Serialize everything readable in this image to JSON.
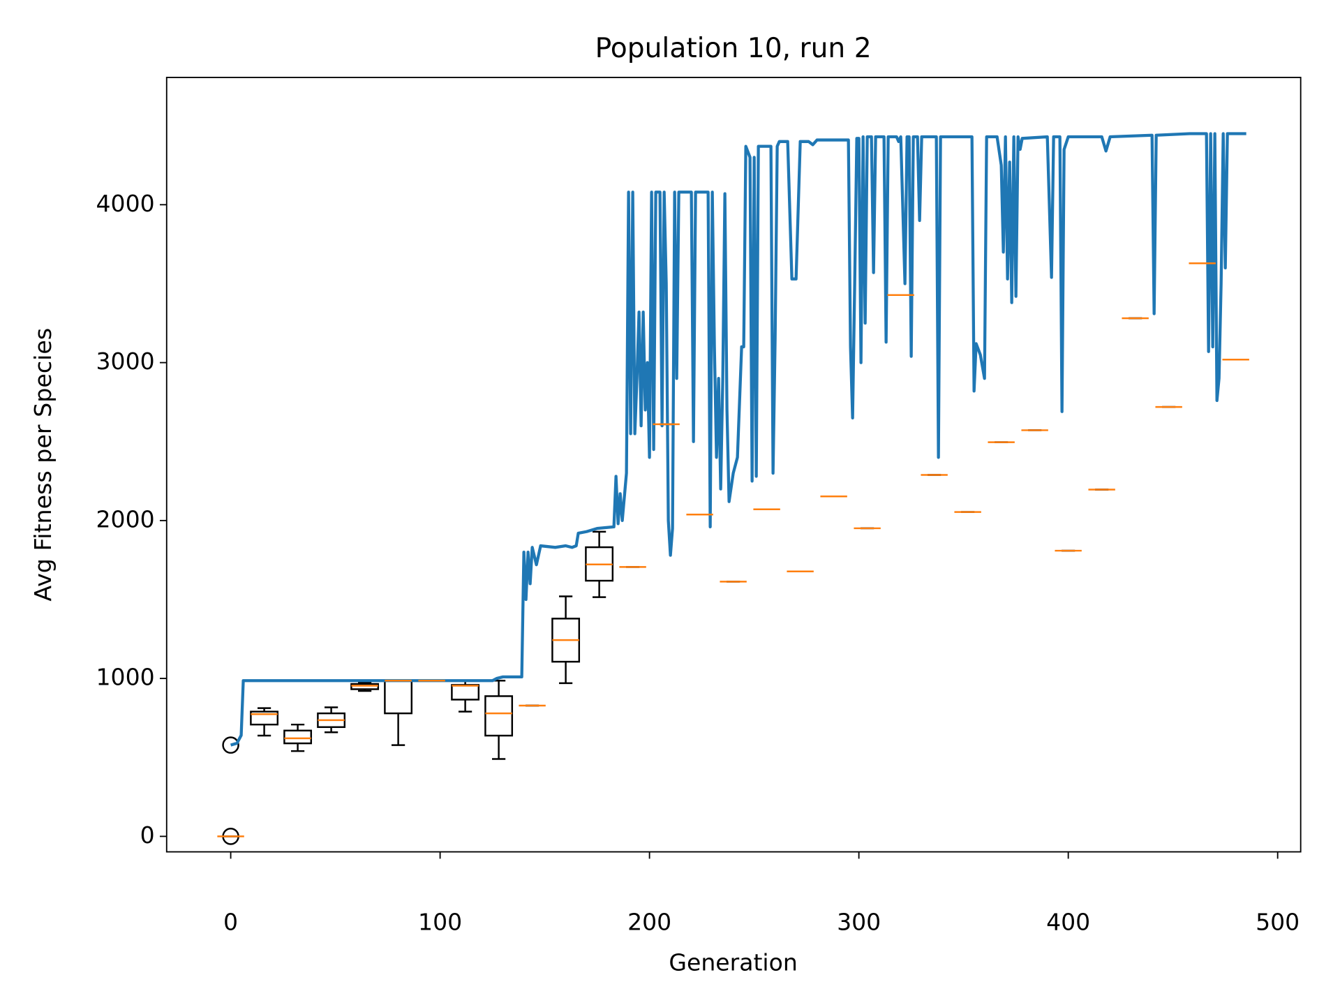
{
  "chart_data": {
    "type": "line_box",
    "title": "Population 10, run 2",
    "xlabel": "Generation",
    "ylabel": "Avg Fitness per Species",
    "xlim": [
      -30.6,
      511
    ],
    "ylim": [
      -98,
      4806
    ],
    "xticks": [
      0,
      100,
      200,
      300,
      400,
      500
    ],
    "yticks": [
      0,
      1000,
      2000,
      3000,
      4000
    ],
    "series": [
      {
        "color": "#1f77b4",
        "x": [
          0,
          3,
          5,
          6,
          20,
          60,
          100,
          125,
          127,
          130,
          139,
          140,
          141,
          142,
          143,
          144,
          146,
          148,
          155,
          160,
          163,
          165,
          166,
          170,
          175,
          183,
          184,
          185,
          186,
          187,
          188,
          189,
          190,
          191,
          192,
          193,
          194,
          195,
          196,
          197,
          198,
          199,
          200,
          201,
          202,
          203,
          205,
          206,
          207,
          208,
          209,
          210,
          211,
          212,
          213,
          214,
          220,
          221,
          222,
          228,
          229,
          230,
          231,
          232,
          233,
          234,
          235,
          236,
          237,
          238,
          240,
          242,
          244,
          245,
          246,
          248,
          249,
          250,
          251,
          252,
          256,
          258,
          259,
          260,
          261,
          262,
          266,
          268,
          270,
          272,
          276,
          278,
          280,
          295,
          296,
          297,
          298,
          299,
          300,
          301,
          302,
          303,
          304,
          306,
          307,
          308,
          312,
          313,
          314,
          318,
          319,
          320,
          322,
          323,
          324,
          325,
          326,
          328,
          329,
          330,
          337,
          338,
          339,
          354,
          355,
          356,
          358,
          360,
          361,
          366,
          368,
          369,
          370,
          371,
          372,
          373,
          374,
          375,
          376,
          377,
          378,
          390,
          392,
          393,
          396,
          397,
          398,
          400,
          416,
          418,
          420,
          440,
          441,
          442,
          458,
          466,
          467,
          468,
          469,
          470,
          471,
          472,
          473,
          474,
          475,
          476,
          485
        ],
        "values": [
          578,
          590,
          640,
          986,
          986,
          986,
          986,
          986,
          1000,
          1010,
          1010,
          1800,
          1500,
          1800,
          1600,
          1830,
          1720,
          1840,
          1830,
          1840,
          1830,
          1840,
          1920,
          1930,
          1950,
          1960,
          2280,
          1980,
          2170,
          2000,
          2150,
          2300,
          4080,
          2550,
          4080,
          2550,
          2900,
          3320,
          2600,
          3320,
          2700,
          3000,
          2400,
          4080,
          2450,
          4080,
          4080,
          2600,
          4080,
          3500,
          2000,
          1780,
          1950,
          4080,
          2900,
          4080,
          4080,
          2500,
          4080,
          4080,
          1960,
          4080,
          3100,
          2400,
          2900,
          2200,
          2900,
          4070,
          2700,
          2120,
          2300,
          2400,
          3100,
          3100,
          4370,
          4300,
          2250,
          4300,
          2280,
          4370,
          4370,
          4370,
          2300,
          3150,
          4370,
          4400,
          4400,
          3530,
          3530,
          4400,
          4400,
          4380,
          4410,
          4410,
          3100,
          2650,
          3500,
          4420,
          4420,
          3000,
          4430,
          3250,
          4430,
          4430,
          3570,
          4430,
          4430,
          3130,
          4430,
          4430,
          4400,
          4430,
          3500,
          4430,
          4430,
          3040,
          4430,
          4430,
          3900,
          4430,
          4430,
          2400,
          4430,
          4430,
          2820,
          3120,
          3050,
          2900,
          4430,
          4430,
          4250,
          3700,
          4430,
          3530,
          4270,
          3380,
          4430,
          3420,
          4430,
          4350,
          4420,
          4430,
          3540,
          4430,
          4430,
          2690,
          4350,
          4430,
          4430,
          4340,
          4430,
          4440,
          3310,
          4440,
          4450,
          4450,
          3070,
          4450,
          3100,
          4450,
          2760,
          2900,
          3500,
          4450,
          3600,
          4450,
          4450
        ]
      }
    ],
    "boxes": {
      "edge_color": "#000000",
      "median_color": "#ff7f0e",
      "positions": [
        0,
        16,
        32,
        48,
        64,
        80,
        96,
        112,
        128,
        144,
        160,
        176,
        192,
        208,
        224,
        240,
        256,
        272,
        288,
        304,
        320,
        336,
        352,
        368,
        384,
        400,
        416,
        432,
        448,
        464,
        480
      ],
      "med": [
        0,
        774,
        621,
        736,
        954,
        986,
        986,
        954,
        779,
        828,
        1243,
        1722,
        1706,
        2610,
        2038,
        1613,
        2071,
        1678,
        2153,
        1951,
        3428,
        2289,
        2054,
        2496,
        2572,
        1809,
        2196,
        3281,
        2719,
        3629,
        3019
      ],
      "q1": [
        0,
        708,
        589,
        692,
        932,
        779,
        986,
        866,
        638,
        828,
        1106,
        1619,
        1706,
        2610,
        2038,
        1613,
        2071,
        1678,
        2153,
        1951,
        3428,
        2289,
        2054,
        2496,
        2572,
        1809,
        2196,
        3281,
        2719,
        3629,
        3019
      ],
      "q3": [
        0,
        790,
        670,
        779,
        965,
        986,
        986,
        959,
        888,
        828,
        1379,
        1831,
        1706,
        2610,
        2038,
        1613,
        2071,
        1678,
        2153,
        1951,
        3428,
        2289,
        2054,
        2496,
        2572,
        1809,
        2196,
        3281,
        2719,
        3629,
        3019
      ],
      "whislo": [
        0,
        638,
        540,
        659,
        921,
        578,
        986,
        790,
        490,
        828,
        970,
        1515,
        1706,
        2610,
        2038,
        1613,
        2071,
        1678,
        2153,
        1951,
        3428,
        2289,
        2054,
        2496,
        2572,
        1809,
        2196,
        3281,
        2719,
        3629,
        3019
      ],
      "whishi": [
        0,
        812,
        708,
        817,
        975,
        986,
        986,
        986,
        986,
        828,
        1520,
        1929,
        1706,
        2610,
        2038,
        1613,
        2071,
        1678,
        2153,
        1951,
        3428,
        2289,
        2054,
        2496,
        2572,
        1809,
        2196,
        3281,
        2719,
        3629,
        3019
      ],
      "fliers": [
        {
          "x": 0,
          "y": 0
        },
        {
          "x": 0,
          "y": 578
        }
      ]
    }
  }
}
